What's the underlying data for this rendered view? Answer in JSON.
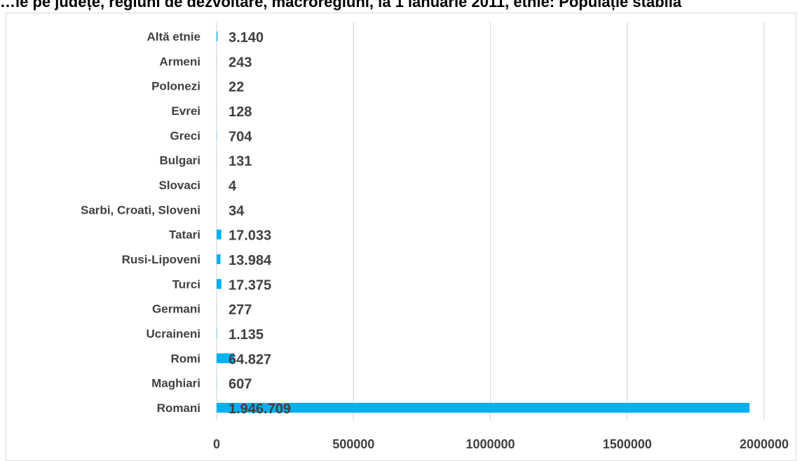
{
  "chart_data": {
    "type": "bar",
    "orientation": "horizontal",
    "title": "…ie pe județe, regiuni de dezvoltare, macroregiuni, la 1 ianuarie 2011, etnie: Populație stabilă",
    "categories": [
      "Romani",
      "Maghiari",
      "Romi",
      "Ucraineni",
      "Germani",
      "Turci",
      "Rusi-Lipoveni",
      "Tatari",
      "Sarbi, Croati, Sloveni",
      "Slovaci",
      "Bulgari",
      "Greci",
      "Evrei",
      "Polonezi",
      "Armeni",
      "Altă etnie"
    ],
    "values": [
      1946709,
      607,
      64827,
      1135,
      277,
      17375,
      13984,
      17033,
      34,
      4,
      131,
      704,
      128,
      22,
      243,
      3140
    ],
    "value_labels": [
      "1.946.709",
      "607",
      "64.827",
      "1.135",
      "277",
      "17.375",
      "13.984",
      "17.033",
      "34",
      "4",
      "131",
      "704",
      "128",
      "22",
      "243",
      "3.140"
    ],
    "xlim": [
      0,
      2000000
    ],
    "xticks": [
      "0",
      "500000",
      "1000000",
      "1500000",
      "2000000"
    ],
    "xlabel": "",
    "ylabel": "",
    "grid": "vertical",
    "legend": "none",
    "bar_color": "#00b0f0",
    "grid_color": "#d9d9d9",
    "text_color": "#404040"
  }
}
